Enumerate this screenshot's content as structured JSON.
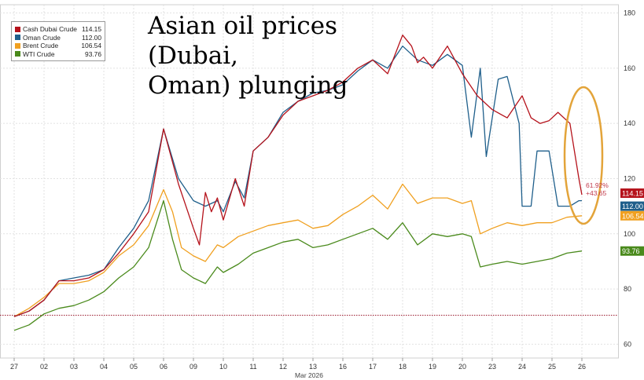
{
  "title_line1": "Asian oil prices (Dubai,",
  "title_line2": "Oman) plunging",
  "annotation": {
    "pct": "61.92%",
    "diff": "+43.65"
  },
  "colors": {
    "dubai": "#b5121b",
    "oman": "#1f5f8b",
    "brent": "#f0a020",
    "wti": "#4a8a1c",
    "baseline": "#9b1b30"
  },
  "chart_data": {
    "type": "line",
    "title": "Asian oil prices (Dubai, Oman) plunging",
    "x_ticks": [
      "27",
      "02",
      "03",
      "04",
      "05",
      "06",
      "09",
      "10",
      "11",
      "12",
      "13",
      "16",
      "17",
      "18",
      "19",
      "20",
      "23",
      "24",
      "25",
      "26"
    ],
    "x_sublabel": "Mar 2026",
    "y_ticks": [
      60,
      80,
      100,
      120,
      140,
      160,
      180
    ],
    "ylim": [
      55,
      183
    ],
    "grid": true,
    "legend_position": "top-left",
    "reference_line": 70.5,
    "legend": [
      {
        "name": "Cash Dubai Crude",
        "value": "114.15",
        "color": "#b5121b"
      },
      {
        "name": "Oman Crude",
        "value": "112.00",
        "color": "#1f5f8b"
      },
      {
        "name": "Brent Crude",
        "value": "106.54",
        "color": "#f0a020"
      },
      {
        "name": "WTI Crude",
        "value": "93.76",
        "color": "#4a8a1c"
      }
    ],
    "end_labels": [
      {
        "text": "114.15",
        "value": 114.15,
        "color": "#b5121b"
      },
      {
        "text": "112.00",
        "value": 112.0,
        "color": "#1f5f8b"
      },
      {
        "text": "106.54",
        "value": 106.54,
        "color": "#f0a020"
      },
      {
        "text": "93.76",
        "value": 93.76,
        "color": "#4a8a1c"
      }
    ],
    "series": [
      {
        "name": "Cash Dubai Crude",
        "color": "#b5121b",
        "x": [
          0,
          0.5,
          1,
          1.5,
          2,
          2.5,
          3,
          3.5,
          4,
          4.5,
          5,
          5.5,
          6,
          6.2,
          6.4,
          6.6,
          6.8,
          7,
          7.4,
          7.7,
          8,
          8.5,
          9,
          9.5,
          10,
          10.5,
          11,
          11.5,
          12,
          12.5,
          13,
          13.3,
          13.5,
          13.7,
          14,
          14.5,
          15,
          15.5,
          16,
          16.5,
          17,
          17.3,
          17.6,
          17.9,
          18.2,
          18.6,
          18.9,
          19
        ],
        "y": [
          70,
          72,
          76,
          83,
          83,
          84,
          87,
          93,
          100,
          108,
          138,
          118,
          102,
          96,
          115,
          108,
          113,
          105,
          120,
          110,
          130,
          135,
          143,
          148,
          150,
          152,
          155,
          160,
          163,
          158,
          172,
          168,
          162,
          164,
          160,
          168,
          158,
          150,
          145,
          142,
          150,
          142,
          140,
          141,
          144,
          140,
          120,
          114.15
        ]
      },
      {
        "name": "Oman Crude",
        "color": "#1f5f8b",
        "x": [
          0,
          0.5,
          1,
          1.5,
          2,
          2.5,
          3,
          3.5,
          4,
          4.5,
          5,
          5.5,
          6,
          6.4,
          6.8,
          7,
          7.4,
          7.7,
          8,
          8.5,
          9,
          9.5,
          10,
          10.5,
          11,
          11.5,
          12,
          12.5,
          13,
          13.5,
          14,
          14.5,
          15,
          15.3,
          15.6,
          15.8,
          16.2,
          16.5,
          16.9,
          17,
          17.3,
          17.5,
          17.9,
          18.2,
          18.6,
          18.9,
          19
        ],
        "y": [
          70,
          72,
          76,
          83,
          84,
          85,
          87,
          95,
          102,
          112,
          138,
          120,
          112,
          110,
          112,
          108,
          119,
          113,
          130,
          135,
          144,
          148,
          151,
          152,
          154,
          159,
          163,
          160,
          168,
          163,
          161,
          165,
          161,
          135,
          160,
          128,
          156,
          157,
          140,
          110,
          110,
          130,
          130,
          110,
          110,
          112,
          112
        ]
      },
      {
        "name": "Brent Crude",
        "color": "#f0a020",
        "x": [
          0,
          0.5,
          1,
          1.5,
          2,
          2.5,
          3,
          3.5,
          4,
          4.5,
          5,
          5.3,
          5.6,
          6,
          6.4,
          6.8,
          7,
          7.5,
          8,
          8.5,
          9,
          9.5,
          10,
          10.5,
          11,
          11.5,
          12,
          12.5,
          13,
          13.5,
          14,
          14.5,
          15,
          15.3,
          15.6,
          16,
          16.5,
          17,
          17.5,
          18,
          18.5,
          19
        ],
        "y": [
          70,
          73,
          77,
          82,
          82,
          83,
          86,
          92,
          96,
          103,
          116,
          108,
          95,
          92,
          90,
          96,
          95,
          99,
          101,
          103,
          104,
          105,
          102,
          103,
          107,
          110,
          114,
          109,
          118,
          111,
          113,
          113,
          111,
          112,
          100,
          102,
          104,
          103,
          104,
          104,
          106,
          106.54
        ]
      },
      {
        "name": "WTI Crude",
        "color": "#4a8a1c",
        "x": [
          0,
          0.5,
          1,
          1.5,
          2,
          2.5,
          3,
          3.5,
          4,
          4.5,
          5,
          5.3,
          5.6,
          6,
          6.4,
          6.8,
          7,
          7.5,
          8,
          8.5,
          9,
          9.5,
          10,
          10.5,
          11,
          11.5,
          12,
          12.5,
          13,
          13.5,
          14,
          14.5,
          15,
          15.3,
          15.6,
          16,
          16.5,
          17,
          17.5,
          18,
          18.5,
          19
        ],
        "y": [
          65,
          67,
          71,
          73,
          74,
          76,
          79,
          84,
          88,
          95,
          112,
          98,
          87,
          84,
          82,
          88,
          86,
          89,
          93,
          95,
          97,
          98,
          95,
          96,
          98,
          100,
          102,
          98,
          104,
          96,
          100,
          99,
          100,
          99,
          88,
          89,
          90,
          89,
          90,
          91,
          93,
          93.76
        ]
      }
    ]
  }
}
